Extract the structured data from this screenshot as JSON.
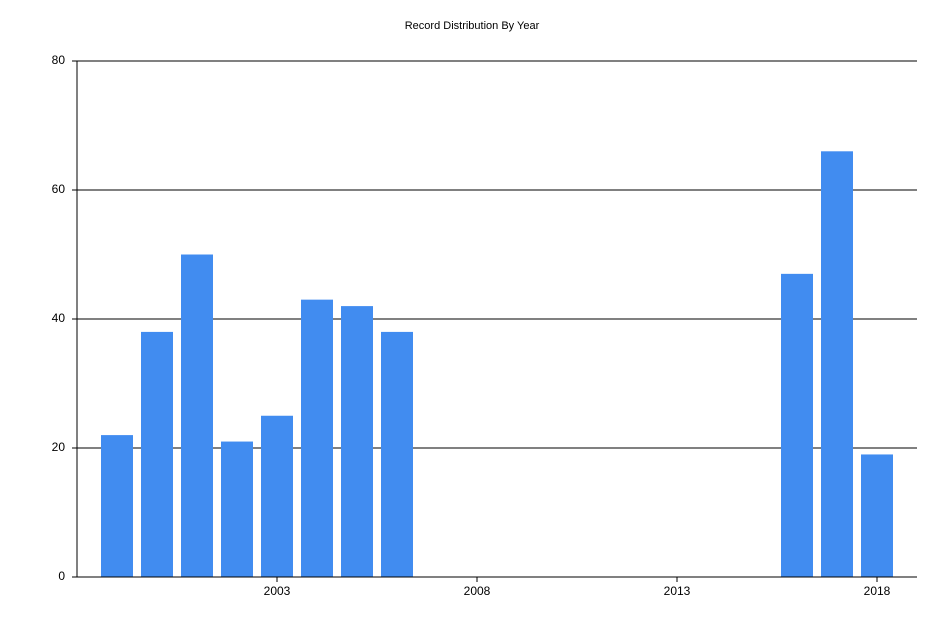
{
  "chart_data": {
    "type": "bar",
    "title": "Record Distribution By Year",
    "x": [
      1999,
      2000,
      2001,
      2002,
      2003,
      2004,
      2005,
      2006,
      2016,
      2017,
      2018
    ],
    "values": [
      22,
      38,
      50,
      21,
      25,
      43,
      42,
      38,
      47,
      66,
      19
    ],
    "color": "#418CF0",
    "xlim": [
      1998,
      2019
    ],
    "xticks": [
      2003,
      2008,
      2013,
      2018
    ],
    "ylim": [
      0,
      80
    ],
    "yticks": [
      0,
      20,
      40,
      60,
      80
    ],
    "grid": true
  }
}
